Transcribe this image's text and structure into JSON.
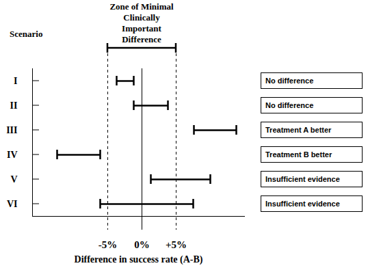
{
  "chart_data": {
    "type": "interval",
    "x_label": "Difference in success rate (A-B)",
    "y_label": "Scenario",
    "categories": [
      "I",
      "II",
      "III",
      "IV",
      "V",
      "VI"
    ],
    "low": [
      -3.7,
      -1.2,
      7.6,
      -12.4,
      1.3,
      -6.1
    ],
    "high": [
      -1.2,
      3.8,
      13.8,
      -6.1,
      10,
      7.5
    ],
    "conclusions": [
      "No difference",
      "No difference",
      "Treatment A better",
      "Treatment B better",
      "Insufficient evidence",
      "Insufficient evidence"
    ],
    "zone": {
      "label": "Zone of Minimal Clinically Important Difference",
      "range": [
        -5,
        5
      ]
    },
    "reference_line": 0,
    "xlim": [
      -16,
      15
    ],
    "xticks": [
      {
        "value": -5,
        "label": "-5%"
      },
      {
        "value": 0,
        "label": "0%"
      },
      {
        "value": 5,
        "label": "+5%"
      }
    ],
    "color": "#000000",
    "grid": false
  }
}
